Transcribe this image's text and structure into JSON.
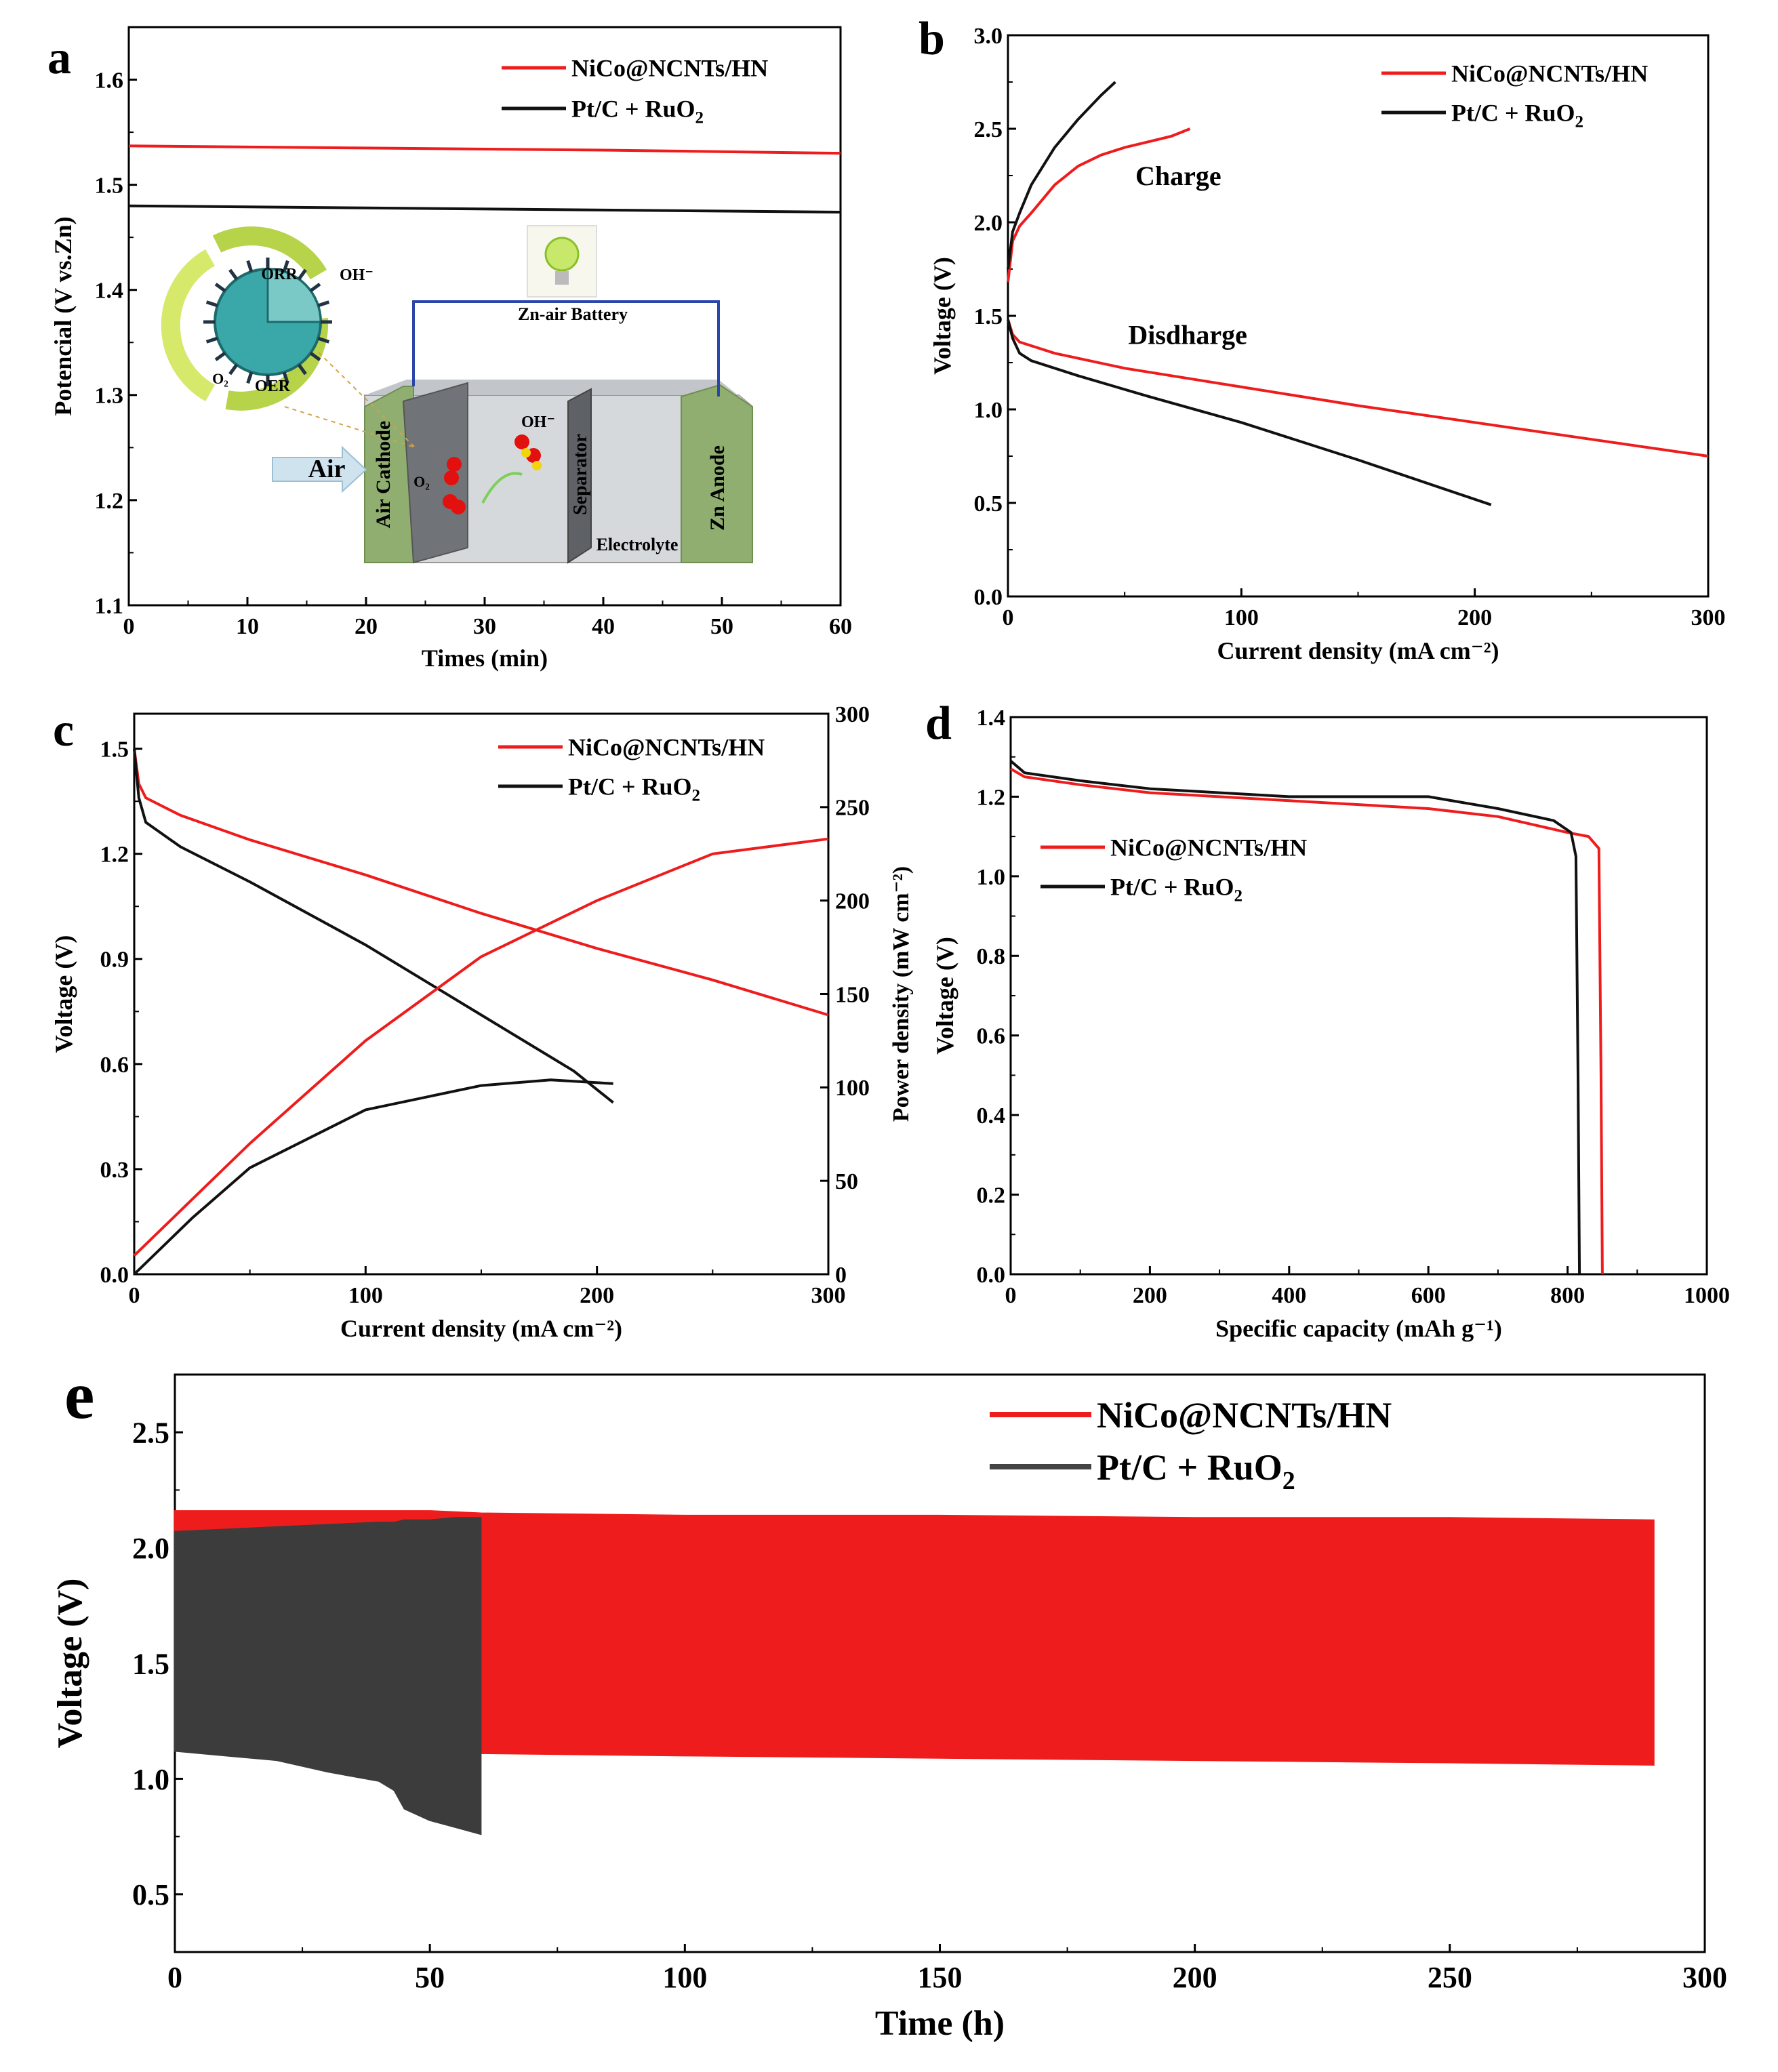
{
  "colors": {
    "red": "#ee1c1c",
    "black": "#111111",
    "dark_fill": "#3c3c3c",
    "gray_text": "#8a8a8a"
  },
  "chart_data": [
    {
      "panel": "a",
      "type": "line",
      "xlabel": "Times (min)",
      "ylabel": "Potencial (V vs.Zn)",
      "xlim": [
        0,
        60
      ],
      "ylim": [
        1.1,
        1.65
      ],
      "x_ticks": [
        "0",
        "10",
        "20",
        "30",
        "40",
        "50",
        "60"
      ],
      "y_ticks": [
        "1.1",
        "1.2",
        "1.3",
        "1.4",
        "1.5",
        "1.6"
      ],
      "legend": [
        "NiCo@NCNTs/HN",
        "Pt/C + RuO2"
      ],
      "series": [
        {
          "name": "NiCo@NCNTs/HN",
          "color": "red",
          "x": [
            0,
            20,
            40,
            60
          ],
          "y": [
            1.537,
            1.535,
            1.533,
            1.53
          ]
        },
        {
          "name": "Pt/C + RuO2",
          "color": "black",
          "x": [
            0,
            20,
            40,
            60
          ],
          "y": [
            1.48,
            1.478,
            1.476,
            1.474
          ]
        }
      ],
      "inset": {
        "labels": {
          "orr": "ORR",
          "oer": "OER",
          "oh_top": "OH⁻",
          "o2_left": "O₂",
          "battery": "Zn-air Battery",
          "air": "Air",
          "cathode": "Air Cathode",
          "separator": "Separator",
          "anode": "Zn Anode",
          "electrolyte": "Electrolyte",
          "o2_mid": "O₂",
          "oh_mid": "OH⁻"
        }
      }
    },
    {
      "panel": "b",
      "type": "line",
      "xlabel": "Current density (mA cm⁻²)",
      "ylabel": "Voltage (V)",
      "xlim": [
        0,
        300
      ],
      "ylim": [
        0,
        3.0
      ],
      "x_ticks": [
        "0",
        "100",
        "200",
        "300"
      ],
      "y_ticks": [
        "0.0",
        "0.5",
        "1.0",
        "1.5",
        "2.0",
        "2.5",
        "3.0"
      ],
      "legend": [
        "NiCo@NCNTs/HN",
        "Pt/C + RuO2"
      ],
      "annotations": [
        "Charge",
        "Disdharge"
      ],
      "series": [
        {
          "name": "NiCo@NCNTs/HN charge",
          "color": "red",
          "x": [
            0,
            2,
            5,
            10,
            20,
            30,
            40,
            50,
            60,
            70,
            78
          ],
          "y": [
            1.68,
            1.9,
            1.98,
            2.05,
            2.2,
            2.3,
            2.36,
            2.4,
            2.43,
            2.46,
            2.5
          ]
        },
        {
          "name": "Pt/C + RuO2 charge",
          "color": "black",
          "x": [
            0,
            2,
            5,
            10,
            20,
            30,
            40,
            46
          ],
          "y": [
            1.75,
            1.95,
            2.05,
            2.2,
            2.4,
            2.55,
            2.68,
            2.75
          ]
        },
        {
          "name": "NiCo@NCNTs/HN discharge",
          "color": "red",
          "x": [
            0,
            2,
            5,
            20,
            50,
            100,
            150,
            200,
            250,
            300
          ],
          "y": [
            1.48,
            1.4,
            1.36,
            1.3,
            1.22,
            1.12,
            1.02,
            0.93,
            0.84,
            0.75
          ]
        },
        {
          "name": "Pt/C + RuO2 discharge",
          "color": "black",
          "x": [
            0,
            2,
            5,
            10,
            30,
            60,
            100,
            150,
            207
          ],
          "y": [
            1.48,
            1.38,
            1.3,
            1.26,
            1.18,
            1.07,
            0.93,
            0.73,
            0.49
          ]
        }
      ]
    },
    {
      "panel": "c",
      "type": "line",
      "xlabel": "Current density (mA cm⁻²)",
      "ylabel": "Voltage (V)",
      "y2label": "Power density (mW cm⁻²)",
      "xlim": [
        0,
        300
      ],
      "ylim": [
        0,
        1.6
      ],
      "y2lim": [
        0,
        300
      ],
      "x_ticks": [
        "0",
        "100",
        "200",
        "300"
      ],
      "y_ticks": [
        "0.0",
        "0.3",
        "0.6",
        "0.9",
        "1.2",
        "1.5"
      ],
      "y2_ticks": [
        "0",
        "50",
        "100",
        "150",
        "200",
        "250",
        "300"
      ],
      "legend": [
        "NiCo@NCNTs/HN",
        "Pt/C + RuO2"
      ],
      "series": [
        {
          "name": "NiCo@NCNTs/HN voltage",
          "color": "red",
          "axis": "left",
          "x": [
            0,
            2,
            5,
            20,
            50,
            100,
            150,
            200,
            250,
            300
          ],
          "y": [
            1.5,
            1.4,
            1.36,
            1.31,
            1.24,
            1.14,
            1.03,
            0.93,
            0.84,
            0.74
          ]
        },
        {
          "name": "Pt/C + RuO2 voltage",
          "color": "black",
          "axis": "left",
          "x": [
            0,
            2,
            5,
            20,
            50,
            100,
            150,
            190,
            207
          ],
          "y": [
            1.5,
            1.36,
            1.29,
            1.22,
            1.12,
            0.94,
            0.74,
            0.58,
            0.49
          ]
        },
        {
          "name": "NiCo@NCNTs/HN power",
          "color": "red",
          "axis": "right",
          "x": [
            0,
            25,
            50,
            100,
            150,
            200,
            250,
            300
          ],
          "y": [
            10,
            40,
            70,
            125,
            170,
            200,
            225,
            233
          ]
        },
        {
          "name": "Pt/C + RuO2 power",
          "color": "black",
          "axis": "right",
          "x": [
            0,
            25,
            50,
            100,
            150,
            180,
            207
          ],
          "y": [
            0,
            30,
            57,
            88,
            101,
            104,
            102
          ]
        }
      ]
    },
    {
      "panel": "d",
      "type": "line",
      "xlabel": "Specific capacity (mAh g⁻¹)",
      "ylabel": "Voltage (V)",
      "xlim": [
        0,
        1000
      ],
      "ylim": [
        0,
        1.4
      ],
      "x_ticks": [
        "0",
        "200",
        "400",
        "600",
        "800",
        "1000"
      ],
      "y_ticks": [
        "0.0",
        "0.2",
        "0.4",
        "0.6",
        "0.8",
        "1.0",
        "1.2",
        "1.4"
      ],
      "legend": [
        "NiCo@NCNTs/HN",
        "Pt/C + RuO2"
      ],
      "series": [
        {
          "name": "NiCo@NCNTs/HN",
          "color": "red",
          "x": [
            0,
            20,
            100,
            200,
            400,
            600,
            700,
            800,
            830,
            845,
            848,
            850
          ],
          "y": [
            1.27,
            1.25,
            1.23,
            1.21,
            1.19,
            1.17,
            1.15,
            1.11,
            1.1,
            1.07,
            0.5,
            0
          ]
        },
        {
          "name": "Pt/C + RuO2",
          "color": "black",
          "x": [
            0,
            20,
            100,
            200,
            400,
            600,
            700,
            780,
            805,
            812,
            815,
            817
          ],
          "y": [
            1.29,
            1.26,
            1.24,
            1.22,
            1.2,
            1.2,
            1.17,
            1.14,
            1.11,
            1.05,
            0.5,
            0
          ]
        }
      ]
    },
    {
      "panel": "e",
      "type": "area",
      "xlabel": "Time (h)",
      "ylabel": "Voltage (V)",
      "xlim": [
        0,
        300
      ],
      "ylim": [
        0.25,
        2.75
      ],
      "x_ticks": [
        "0",
        "50",
        "100",
        "150",
        "200",
        "250",
        "300"
      ],
      "y_ticks": [
        "0.5",
        "1.0",
        "1.5",
        "2.0",
        "2.5"
      ],
      "legend": [
        "NiCo@NCNTs/HN",
        "Pt/C + RuO2"
      ],
      "series": [
        {
          "name": "NiCo@NCNTs/HN",
          "color": "red",
          "x": [
            0,
            50,
            60,
            100,
            150,
            200,
            250,
            290
          ],
          "upper": [
            2.16,
            2.16,
            2.15,
            2.14,
            2.14,
            2.13,
            2.13,
            2.12
          ],
          "lower": [
            1.12,
            1.11,
            1.11,
            1.1,
            1.09,
            1.08,
            1.07,
            1.06
          ]
        },
        {
          "name": "Pt/C + RuO2",
          "color": "dark_fill",
          "x": [
            0,
            10,
            20,
            30,
            40,
            43,
            45,
            50,
            55,
            60
          ],
          "upper": [
            2.07,
            2.08,
            2.09,
            2.1,
            2.11,
            2.11,
            2.12,
            2.12,
            2.13,
            2.13
          ],
          "lower": [
            1.12,
            1.1,
            1.08,
            1.03,
            0.99,
            0.95,
            0.87,
            0.82,
            0.79,
            0.76
          ]
        }
      ]
    }
  ]
}
